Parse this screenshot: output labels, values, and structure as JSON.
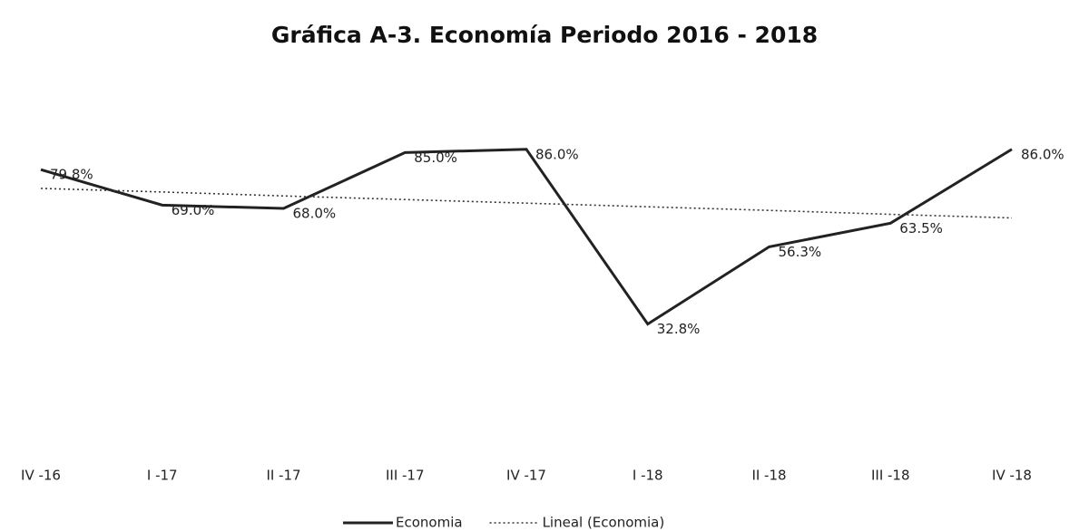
{
  "chart_data": {
    "type": "line",
    "title": "Gráfica A-3. Economía Periodo 2016 - 2018",
    "categories": [
      "IV -16",
      "I -17",
      "II -17",
      "III -17",
      "IV -17",
      "I -18",
      "II -18",
      "III -18",
      "IV -18"
    ],
    "series": [
      {
        "name": "Economia",
        "color": "#222222",
        "style": "solid",
        "values": [
          79.8,
          69.0,
          68.0,
          85.0,
          86.0,
          32.8,
          56.3,
          63.5,
          86.0
        ],
        "value_labels": [
          "79.8%",
          "69.0%",
          "68.0%",
          "85.0%",
          "86.0%",
          "32.8%",
          "56.3%",
          "63.5%",
          "86.0%"
        ]
      },
      {
        "name": "Lineal (Economia)",
        "color": "#333333",
        "style": "dotted",
        "values": [
          74.1,
          73.0,
          71.8,
          70.7,
          69.6,
          68.5,
          67.4,
          66.2,
          65.1
        ]
      }
    ],
    "ylim": [
      20,
      100
    ],
    "grid": false,
    "legend": "bottom"
  }
}
